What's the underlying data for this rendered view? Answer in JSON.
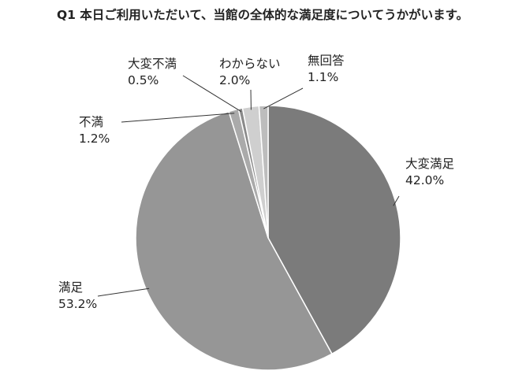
{
  "chart_data": {
    "type": "pie",
    "title": "Q1 本日ご利用いただいて、当館の全体的な満足度についてうかがいます。",
    "slices": [
      {
        "label": "大変満足",
        "value": 42.0,
        "value_label": "42.0%",
        "color": "#7b7b7b"
      },
      {
        "label": "満足",
        "value": 53.2,
        "value_label": "53.2%",
        "color": "#969696"
      },
      {
        "label": "不満",
        "value": 1.2,
        "value_label": "1.2%",
        "color": "#aaaaaa"
      },
      {
        "label": "大変不満",
        "value": 0.5,
        "value_label": "0.5%",
        "color": "#8a8a8a"
      },
      {
        "label": "わからない",
        "value": 2.0,
        "value_label": "2.0%",
        "color": "#cfcfcf"
      },
      {
        "label": "無回答",
        "value": 1.1,
        "value_label": "1.1%",
        "color": "#bdbdbd"
      }
    ],
    "start": "12 o'clock",
    "direction": "clockwise",
    "legend": "none"
  }
}
